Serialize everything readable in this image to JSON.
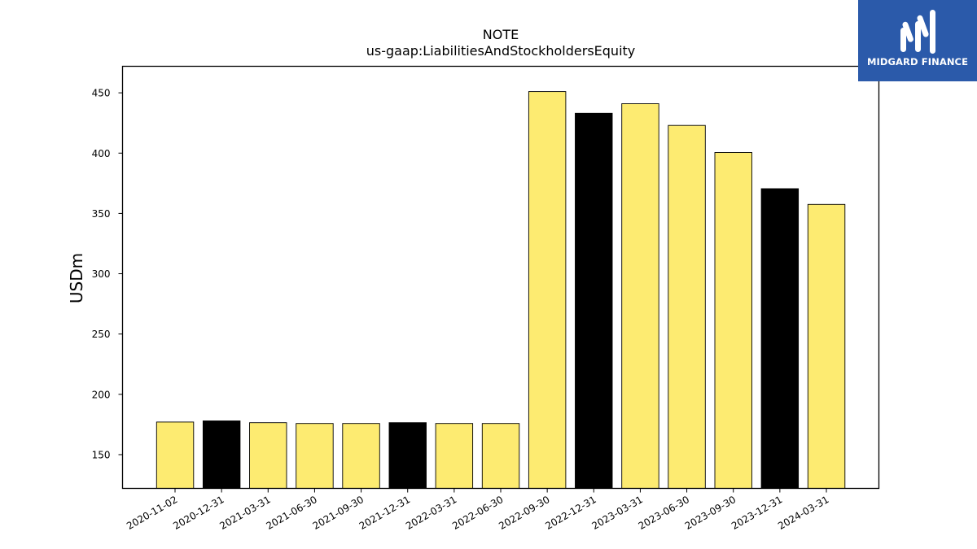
{
  "chart_data": {
    "type": "bar",
    "title": "NOTE",
    "subtitle": "us-gaap:LiabilitiesAndStockholdersEquity",
    "xlabel": "",
    "ylabel": "USDm",
    "ylim": [
      122,
      472
    ],
    "yticks": [
      150,
      200,
      250,
      300,
      350,
      400,
      450
    ],
    "grid": false,
    "categories": [
      "2020-11-02",
      "2020-12-31",
      "2021-03-31",
      "2021-06-30",
      "2021-09-30",
      "2021-12-31",
      "2022-03-31",
      "2022-06-30",
      "2022-09-30",
      "2022-12-31",
      "2023-03-31",
      "2023-06-30",
      "2023-09-30",
      "2023-12-31",
      "2024-03-31"
    ],
    "values": [
      177,
      178,
      176.5,
      175.8,
      175.8,
      176.5,
      175.8,
      175.8,
      451,
      433,
      441,
      423,
      400.5,
      370.5,
      357.5
    ],
    "bar_colors": [
      "#fdeb71",
      "#000000",
      "#fdeb71",
      "#fdeb71",
      "#fdeb71",
      "#000000",
      "#fdeb71",
      "#fdeb71",
      "#fdeb71",
      "#000000",
      "#fdeb71",
      "#fdeb71",
      "#fdeb71",
      "#000000",
      "#fdeb71"
    ],
    "bar_edge_color": "#000000"
  },
  "logo": {
    "text": "MIDGARD FINANCE",
    "background": "#2b5aaa",
    "icon": "midgard-m-logo-icon"
  }
}
